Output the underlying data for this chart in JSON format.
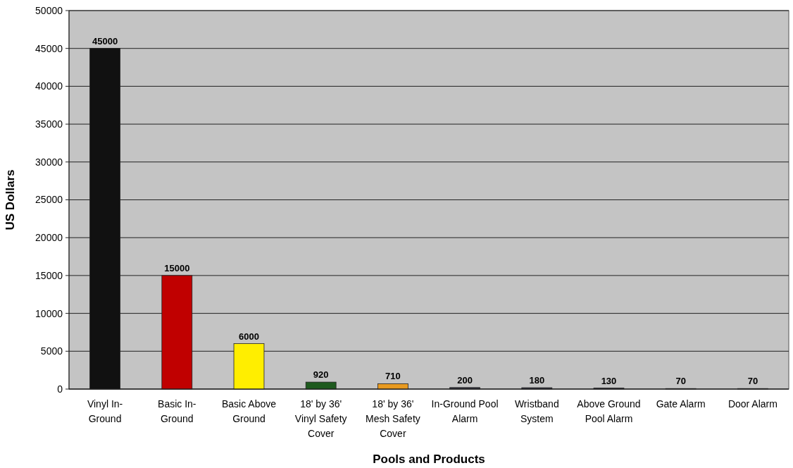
{
  "chart_data": {
    "type": "bar",
    "xlabel": "Pools and Products",
    "ylabel": "US Dollars",
    "categories": [
      "Vinyl In-Ground",
      "Basic In-Ground",
      "Basic Above Ground",
      "18' by 36' Vinyl Safety Cover",
      "18' by 36' Mesh Safety Cover",
      "In-Ground Pool Alarm",
      "Wristband System",
      "Above Ground Pool Alarm",
      "Gate Alarm",
      "Door Alarm"
    ],
    "values": [
      45000,
      15000,
      6000,
      920,
      710,
      200,
      180,
      130,
      70,
      70
    ],
    "colors": [
      "#111111",
      "#c00000",
      "#ffee00",
      "#1e5a1e",
      "#e89a20",
      "#333340",
      "#333340",
      "#333340",
      "#333340",
      "#333340"
    ],
    "ylim": [
      0,
      50000
    ],
    "yticks": [
      0,
      5000,
      10000,
      15000,
      20000,
      25000,
      30000,
      35000,
      40000,
      45000,
      50000
    ],
    "grid": "y",
    "data_labels": true
  }
}
